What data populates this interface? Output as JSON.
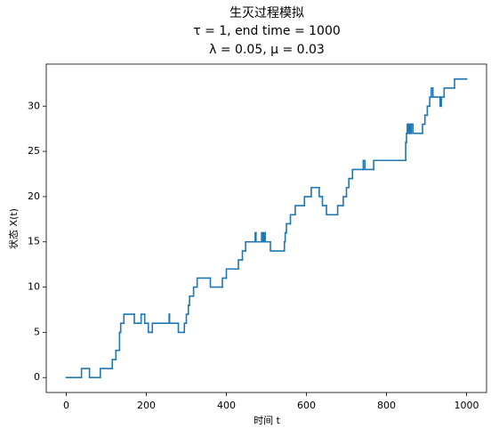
{
  "chart_data": {
    "type": "step",
    "title": [
      "生灭过程模拟",
      "τ = 1, end time = 1000",
      "λ = 0.05, μ = 0.03"
    ],
    "xlabel": "时间 t",
    "ylabel": "状态 X(t)",
    "xlim": [
      -50,
      1050
    ],
    "ylim": [
      -1.65,
      34.65
    ],
    "xticks": [
      0,
      200,
      400,
      600,
      800,
      1000
    ],
    "yticks": [
      0,
      5,
      10,
      15,
      20,
      25,
      30
    ],
    "series": [
      {
        "name": "X(t)",
        "color": "#1f77b4",
        "x": [
          0,
          38,
          58,
          85,
          115,
          124,
          133,
          136,
          144,
          170,
          187,
          196,
          205,
          215,
          257,
          258,
          280,
          295,
          300,
          305,
          308,
          318,
          327,
          360,
          390,
          400,
          430,
          440,
          448,
          472,
          474,
          488,
          491,
          494,
          497,
          510,
          545,
          547,
          550,
          560,
          572,
          595,
          612,
          632,
          640,
          650,
          678,
          692,
          700,
          706,
          715,
          742,
          746,
          768,
          848,
          850,
          852,
          854,
          857,
          860,
          862,
          866,
          890,
          896,
          902,
          908,
          912,
          916,
          934,
          937,
          944,
          970,
          1000
        ],
        "values": [
          0,
          1,
          0,
          1,
          2,
          3,
          5,
          6,
          7,
          6,
          7,
          6,
          5,
          6,
          7,
          6,
          5,
          6,
          7,
          8,
          9,
          10,
          11,
          10,
          11,
          12,
          13,
          14,
          15,
          16,
          15,
          16,
          15,
          16,
          15,
          14,
          15,
          16,
          17,
          18,
          19,
          20,
          21,
          20,
          19,
          18,
          19,
          20,
          21,
          22,
          23,
          24,
          23,
          24,
          26,
          27,
          28,
          27,
          28,
          27,
          28,
          27,
          28,
          29,
          30,
          31,
          32,
          31,
          30,
          31,
          32,
          33,
          33
        ]
      }
    ]
  }
}
